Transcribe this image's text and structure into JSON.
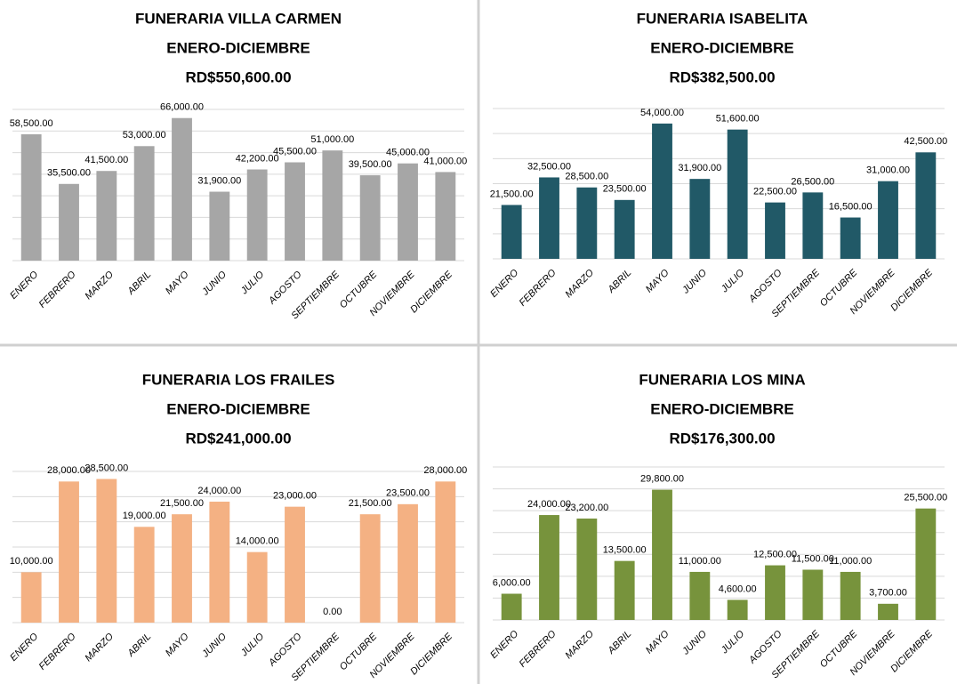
{
  "chart_data": [
    {
      "type": "bar",
      "title": "FUNERARIA VILLA CARMEN",
      "subtitle": "ENERO-DICIEMBRE",
      "total": "RD$550,600.00",
      "categories": [
        "ENERO",
        "FEBRERO",
        "MARZO",
        "ABRIL",
        "MAYO",
        "JUNIO",
        "JULIO",
        "AGOSTO",
        "SEPTIEMBRE",
        "OCTUBRE",
        "NOVIEMBRE",
        "DICIEMBRE"
      ],
      "values": [
        58500,
        35500,
        41500,
        53000,
        66000,
        31900,
        42200,
        45500,
        51000,
        39500,
        45000,
        41000
      ],
      "value_labels": [
        "58,500.00",
        "35,500.00",
        "41,500.00",
        "53,000.00",
        "66,000.00",
        "31,900.00",
        "42,200.00",
        "45,500.00",
        "51,000.00",
        "39,500.00",
        "45,000.00",
        "41,000.00"
      ],
      "color": "#a6a6a6",
      "ylim": [
        0,
        70000
      ],
      "yticks": [
        0,
        10000,
        20000,
        30000,
        40000,
        50000,
        60000,
        70000
      ],
      "grid": true
    },
    {
      "type": "bar",
      "title": "FUNERARIA ISABELITA",
      "subtitle": "ENERO-DICIEMBRE",
      "total": "RD$382,500.00",
      "categories": [
        "ENERO",
        "FEBRERO",
        "MARZO",
        "ABRIL",
        "MAYO",
        "JUNIO",
        "JULIO",
        "AGOSTO",
        "SEPTIEMBRE",
        "OCTUBRE",
        "NOVIEMBRE",
        "DICIEMBRE"
      ],
      "values": [
        21500,
        32500,
        28500,
        23500,
        54000,
        31900,
        51600,
        22500,
        26500,
        16500,
        31000,
        42500
      ],
      "value_labels": [
        "21,500.00",
        "32,500.00",
        "28,500.00",
        "23,500.00",
        "54,000.00",
        "31,900.00",
        "51,600.00",
        "22,500.00",
        "26,500.00",
        "16,500.00",
        "31,000.00",
        "42,500.00"
      ],
      "color": "#215967",
      "ylim": [
        0,
        60000
      ],
      "yticks": [
        0,
        10000,
        20000,
        30000,
        40000,
        50000,
        60000
      ],
      "grid": true
    },
    {
      "type": "bar",
      "title": "FUNERARIA LOS FRAILES",
      "subtitle": "ENERO-DICIEMBRE",
      "total": "RD$241,000.00",
      "categories": [
        "ENERO",
        "FEBRERO",
        "MARZO",
        "ABRIL",
        "MAYO",
        "JUNIO",
        "JULIO",
        "AGOSTO",
        "SEPTIEMBRE",
        "OCTUBRE",
        "NOVIEMBRE",
        "DICIEMBRE"
      ],
      "values": [
        10000,
        28000,
        28500,
        19000,
        21500,
        24000,
        14000,
        23000,
        0,
        21500,
        23500,
        28000
      ],
      "value_labels": [
        "10,000.00",
        "28,000.00",
        "28,500.00",
        "19,000.00",
        "21,500.00",
        "24,000.00",
        "14,000.00",
        "23,000.00",
        "0.00",
        "21,500.00",
        "23,500.00",
        "28,000.00"
      ],
      "color": "#f4b183",
      "ylim": [
        0,
        30000
      ],
      "yticks": [
        0,
        5000,
        10000,
        15000,
        20000,
        25000,
        30000
      ],
      "grid": true
    },
    {
      "type": "bar",
      "title": "FUNERARIA LOS MINA",
      "subtitle": "ENERO-DICIEMBRE",
      "total": "RD$176,300.00",
      "categories": [
        "ENERO",
        "FEBRERO",
        "MARZO",
        "ABRIL",
        "MAYO",
        "JUNIO",
        "JULIO",
        "AGOSTO",
        "SEPTIEMBRE",
        "OCTUBRE",
        "NOVIEMBRE",
        "DICIEMBRE"
      ],
      "values": [
        6000,
        24000,
        23200,
        13500,
        29800,
        11000,
        4600,
        12500,
        11500,
        11000,
        3700,
        25500
      ],
      "value_labels": [
        "6,000.00",
        "24,000.00",
        "23,200.00",
        "13,500.00",
        "29,800.00",
        "11,000.00",
        "4,600.00",
        "12,500.00",
        "11,500.00",
        "11,000.00",
        "3,700.00",
        "25,500.00"
      ],
      "color": "#77933c",
      "ylim": [
        0,
        35000
      ],
      "yticks": [
        0,
        5000,
        10000,
        15000,
        20000,
        25000,
        30000,
        35000
      ],
      "grid": true
    }
  ]
}
